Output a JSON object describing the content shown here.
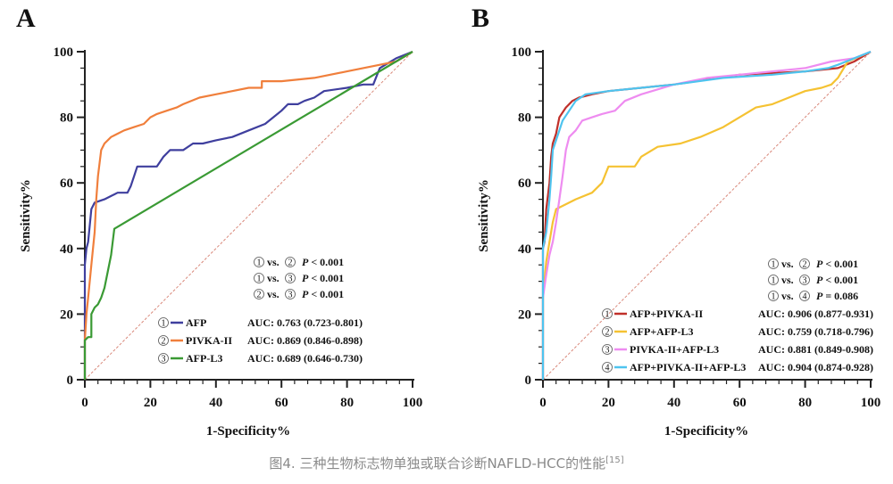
{
  "caption": {
    "text": "图4. 三种生物标志物单独或联合诊断NAFLD-HCC的性能",
    "reference": "[15]"
  },
  "chart_data": [
    {
      "panel": "A",
      "type": "line",
      "xlabel": "1-Specificity%",
      "ylabel": "Sensitivity%",
      "xlim": [
        0,
        100
      ],
      "ylim": [
        0,
        100
      ],
      "xticks": [
        0,
        20,
        40,
        60,
        80,
        100
      ],
      "yticks": [
        0,
        20,
        40,
        60,
        80,
        100
      ],
      "grid": false,
      "reference_line": {
        "style": "dashed",
        "color": "#d9887a",
        "from": [
          0,
          0
        ],
        "to": [
          100,
          100
        ]
      },
      "legend_position": "bottom-right",
      "comparisons": [
        {
          "a": "1",
          "b": "2",
          "p": "P < 0.001"
        },
        {
          "a": "1",
          "b": "3",
          "p": "P < 0.001"
        },
        {
          "a": "2",
          "b": "3",
          "p": "P < 0.001"
        }
      ],
      "series": [
        {
          "id": "1",
          "name": "AFP",
          "color": "#3f3f9e",
          "auc": "AUC: 0.763 (0.723-0.801)",
          "x": [
            0,
            0,
            0.5,
            1,
            2,
            3,
            6,
            8,
            10,
            13,
            14,
            15,
            16,
            22,
            24,
            26,
            30,
            33,
            36,
            40,
            45,
            50,
            55,
            60,
            62,
            65,
            67,
            70,
            73,
            80,
            85,
            88,
            90,
            95,
            100
          ],
          "y": [
            0,
            35,
            40,
            42,
            52,
            54,
            55,
            56,
            57,
            57,
            59,
            62,
            65,
            65,
            68,
            70,
            70,
            72,
            72,
            73,
            74,
            76,
            78,
            82,
            84,
            84,
            85,
            86,
            88,
            89,
            90,
            90,
            95,
            98,
            100
          ]
        },
        {
          "id": "2",
          "name": "PIVKA-II",
          "color": "#f07f3c",
          "auc": "AUC: 0.869 (0.846-0.898)",
          "x": [
            0,
            0,
            0.5,
            1,
            2,
            3,
            3.5,
            4,
            5,
            6,
            8,
            10,
            12,
            15,
            18,
            20,
            22,
            25,
            28,
            30,
            35,
            40,
            45,
            50,
            54,
            54,
            60,
            70,
            80,
            90,
            95,
            100
          ],
          "y": [
            0,
            12,
            20,
            25,
            35,
            45,
            55,
            62,
            70,
            72,
            74,
            75,
            76,
            77,
            78,
            80,
            81,
            82,
            83,
            84,
            86,
            87,
            88,
            89,
            89,
            91,
            91,
            92,
            94,
            96,
            97,
            100
          ]
        },
        {
          "id": "3",
          "name": "AFP-L3",
          "color": "#3a9a34",
          "auc": "AUC: 0.689 (0.646-0.730)",
          "x": [
            0,
            0,
            1,
            2,
            2,
            3,
            4,
            5,
            6,
            7,
            8,
            9,
            100
          ],
          "y": [
            0,
            12,
            13,
            13,
            20,
            22,
            23,
            25,
            28,
            33,
            38,
            46,
            100
          ]
        }
      ]
    },
    {
      "panel": "B",
      "type": "line",
      "xlabel": "1-Specificity%",
      "ylabel": "Sensitivity%",
      "xlim": [
        0,
        100
      ],
      "ylim": [
        0,
        100
      ],
      "xticks": [
        0,
        20,
        40,
        60,
        80,
        100
      ],
      "yticks": [
        0,
        20,
        40,
        60,
        80,
        100
      ],
      "grid": false,
      "reference_line": {
        "style": "dashed",
        "color": "#d9887a",
        "from": [
          0,
          0
        ],
        "to": [
          100,
          100
        ]
      },
      "legend_position": "bottom-right",
      "comparisons": [
        {
          "a": "1",
          "b": "2",
          "p": "P < 0.001"
        },
        {
          "a": "1",
          "b": "3",
          "p": "P < 0.001"
        },
        {
          "a": "1",
          "b": "4",
          "p": "P = 0.086"
        }
      ],
      "series": [
        {
          "id": "1",
          "name": "AFP+PIVKA-II",
          "color": "#c0302a",
          "auc": "AUC: 0.906 (0.877-0.931)",
          "x": [
            0,
            0,
            0.5,
            1,
            2,
            2.5,
            3,
            4,
            5,
            7,
            9,
            11,
            15,
            20,
            30,
            40,
            60,
            80,
            90,
            95,
            100
          ],
          "y": [
            0,
            40,
            42,
            52,
            60,
            68,
            72,
            75,
            80,
            83,
            85,
            86,
            87,
            88,
            89,
            90,
            93,
            94,
            95,
            97,
            100
          ]
        },
        {
          "id": "2",
          "name": "AFP+AFP-L3",
          "color": "#f5c232",
          "auc": "AUC: 0.759 (0.718-0.796)",
          "x": [
            0,
            0,
            1,
            2,
            3,
            4,
            6,
            10,
            15,
            18,
            20,
            28,
            30,
            35,
            42,
            48,
            55,
            60,
            65,
            70,
            75,
            80,
            85,
            88,
            90,
            93,
            100
          ],
          "y": [
            0,
            25,
            36,
            42,
            48,
            52,
            53,
            55,
            57,
            60,
            65,
            65,
            68,
            71,
            72,
            74,
            77,
            80,
            83,
            84,
            86,
            88,
            89,
            90,
            92,
            97,
            100
          ]
        },
        {
          "id": "3",
          "name": "PIVKA-II+AFP-L3",
          "color": "#ee8cf0",
          "auc": "AUC: 0.881 (0.849-0.908)",
          "x": [
            0,
            0,
            1,
            2,
            3,
            4,
            5,
            6,
            7,
            8,
            10,
            12,
            15,
            18,
            22,
            25,
            30,
            40,
            50,
            60,
            70,
            80,
            88,
            95,
            100
          ],
          "y": [
            0,
            25,
            32,
            38,
            42,
            48,
            55,
            62,
            70,
            74,
            76,
            79,
            80,
            81,
            82,
            85,
            87,
            90,
            92,
            93,
            94,
            95,
            97,
            98,
            100
          ]
        },
        {
          "id": "4",
          "name": "AFP+PIVKA-II+AFP-L3",
          "color": "#4ec4ef",
          "auc": "AUC: 0.904 (0.874-0.928)",
          "x": [
            0,
            0,
            0,
            1,
            2,
            2.5,
            3,
            4,
            5,
            6,
            8,
            10,
            13,
            20,
            30,
            40,
            55,
            70,
            80,
            87,
            90,
            95,
            100
          ],
          "y": [
            0,
            25,
            40,
            45,
            55,
            62,
            70,
            73,
            76,
            79,
            82,
            85,
            87,
            88,
            89,
            90,
            92,
            93,
            94,
            95,
            96,
            98,
            100
          ]
        }
      ]
    }
  ],
  "panels": {
    "A": {
      "letter": "A",
      "xlabel": "1-Specificity%",
      "ylabel": "Sensitivity%",
      "ticks": [
        "0",
        "20",
        "40",
        "60",
        "80",
        "100"
      ],
      "vs": "vs.",
      "legend": [
        {
          "num": "1",
          "name": "AFP",
          "auc": "AUC: 0.763 (0.723-0.801)"
        },
        {
          "num": "2",
          "name": "PIVKA-II",
          "auc": "AUC: 0.869 (0.846-0.898)"
        },
        {
          "num": "3",
          "name": "AFP-L3",
          "auc": "AUC: 0.689 (0.646-0.730)"
        }
      ],
      "comparisons": [
        {
          "a": "1",
          "b": "2",
          "p_italic": "P",
          "p_rest": " < 0.001"
        },
        {
          "a": "1",
          "b": "3",
          "p_italic": "P",
          "p_rest": " < 0.001"
        },
        {
          "a": "2",
          "b": "3",
          "p_italic": "P",
          "p_rest": " < 0.001"
        }
      ]
    },
    "B": {
      "letter": "B",
      "xlabel": "1-Specificity%",
      "ylabel": "Sensitivity%",
      "ticks": [
        "0",
        "20",
        "40",
        "60",
        "80",
        "100"
      ],
      "vs": "vs.",
      "legend": [
        {
          "num": "1",
          "name": "AFP+PIVKA-II",
          "auc": "AUC: 0.906 (0.877-0.931)"
        },
        {
          "num": "2",
          "name": "AFP+AFP-L3",
          "auc": "AUC: 0.759 (0.718-0.796)"
        },
        {
          "num": "3",
          "name": "PIVKA-II+AFP-L3",
          "auc": "AUC: 0.881 (0.849-0.908)"
        },
        {
          "num": "4",
          "name": "AFP+PIVKA-II+AFP-L3",
          "auc": "AUC: 0.904 (0.874-0.928)"
        }
      ],
      "comparisons": [
        {
          "a": "1",
          "b": "2",
          "p_italic": "P",
          "p_rest": " < 0.001"
        },
        {
          "a": "1",
          "b": "3",
          "p_italic": "P",
          "p_rest": " < 0.001"
        },
        {
          "a": "1",
          "b": "4",
          "p_italic": "P",
          "p_rest": " = 0.086"
        }
      ]
    }
  }
}
